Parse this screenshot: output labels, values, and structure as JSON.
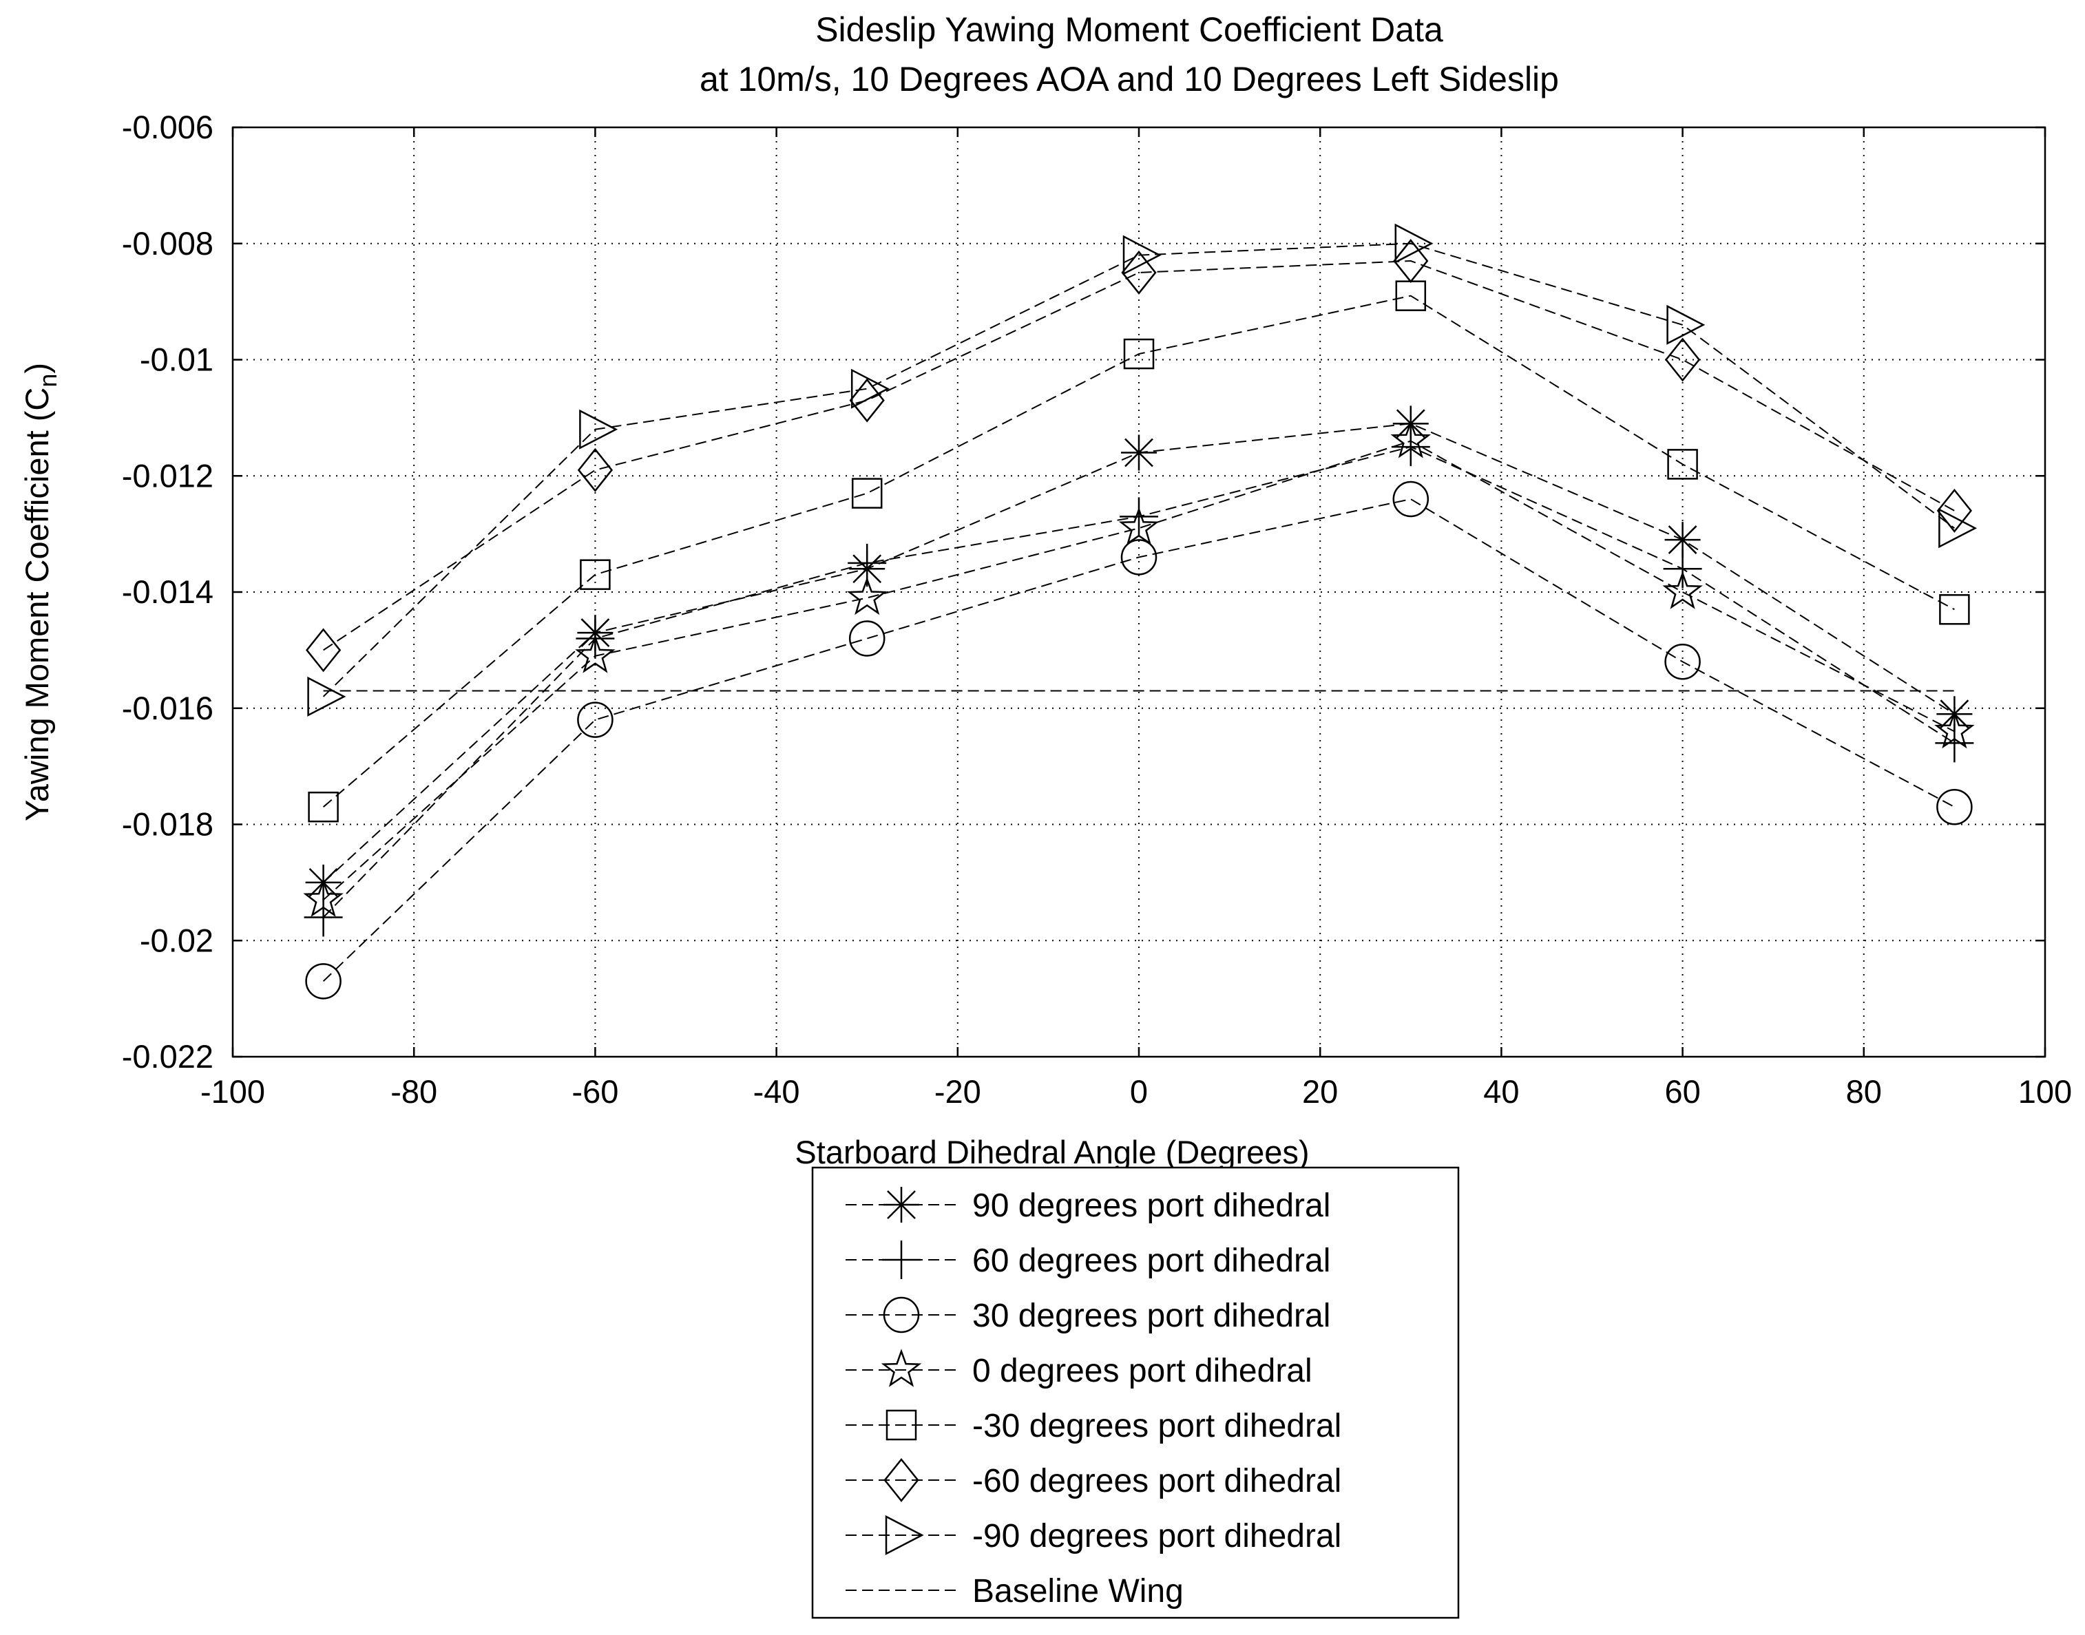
{
  "chart_data": {
    "type": "line",
    "title": "Sideslip Yawing Moment Coefficient Data",
    "subtitle": "at 10m/s, 10 Degrees AOA and 10 Degrees Left Sideslip",
    "xlabel": "Starboard Dihedral Angle (Degrees)",
    "ylabel_main": "Yawing Moment Coefficient (C",
    "ylabel_sub": "n",
    "ylabel_close": ")",
    "xlim": [
      -100,
      100
    ],
    "ylim": [
      -0.022,
      -0.006
    ],
    "x_ticks": [
      -100,
      -80,
      -60,
      -40,
      -20,
      0,
      20,
      40,
      60,
      80,
      100
    ],
    "y_ticks": [
      -0.022,
      -0.02,
      -0.018,
      -0.016,
      -0.014,
      -0.012,
      -0.01,
      -0.008,
      -0.006
    ],
    "x_tick_labels": [
      "-100",
      "-80",
      "-60",
      "-40",
      "-20",
      "0",
      "20",
      "40",
      "60",
      "80",
      "100"
    ],
    "y_tick_labels": [
      "-0.022",
      "-0.02",
      "-0.018",
      "-0.016",
      "-0.014",
      "-0.012",
      "-0.01",
      "-0.008",
      "-0.006"
    ],
    "grid": true,
    "legend_position": "below-plot",
    "x": [
      -90,
      -60,
      -30,
      0,
      30,
      60,
      90
    ],
    "series": [
      {
        "name": "90 degrees port dihedral",
        "marker": "asterisk",
        "values": [
          -0.019,
          -0.0147,
          -0.0136,
          -0.0116,
          -0.0111,
          -0.0131,
          -0.0161
        ]
      },
      {
        "name": "60 degrees port dihedral",
        "marker": "plus",
        "values": [
          -0.0196,
          -0.0148,
          -0.0135,
          -0.0127,
          -0.0115,
          -0.0136,
          -0.0166
        ]
      },
      {
        "name": "30 degrees port dihedral",
        "marker": "circle",
        "values": [
          -0.0207,
          -0.0162,
          -0.0148,
          -0.0134,
          -0.0124,
          -0.0152,
          -0.0177
        ]
      },
      {
        "name": "0 degrees port dihedral",
        "marker": "star",
        "values": [
          -0.0193,
          -0.0151,
          -0.0141,
          -0.0129,
          -0.0114,
          -0.014,
          -0.0164
        ]
      },
      {
        "name": "-30 degrees port dihedral",
        "marker": "square",
        "values": [
          -0.0177,
          -0.0137,
          -0.0123,
          -0.0099,
          -0.0089,
          -0.0118,
          -0.0143
        ]
      },
      {
        "name": "-60 degrees port dihedral",
        "marker": "diamond",
        "values": [
          -0.015,
          -0.0119,
          -0.0107,
          -0.0085,
          -0.0083,
          -0.01,
          -0.0126
        ]
      },
      {
        "name": "-90 degrees port dihedral",
        "marker": "triangle-right",
        "values": [
          -0.0158,
          -0.0112,
          -0.0105,
          -0.0082,
          -0.008,
          -0.0094,
          -0.0129
        ]
      },
      {
        "name": "Baseline Wing",
        "marker": "none",
        "x": [
          -90,
          90
        ],
        "values": [
          -0.0157,
          -0.0157
        ]
      }
    ]
  }
}
